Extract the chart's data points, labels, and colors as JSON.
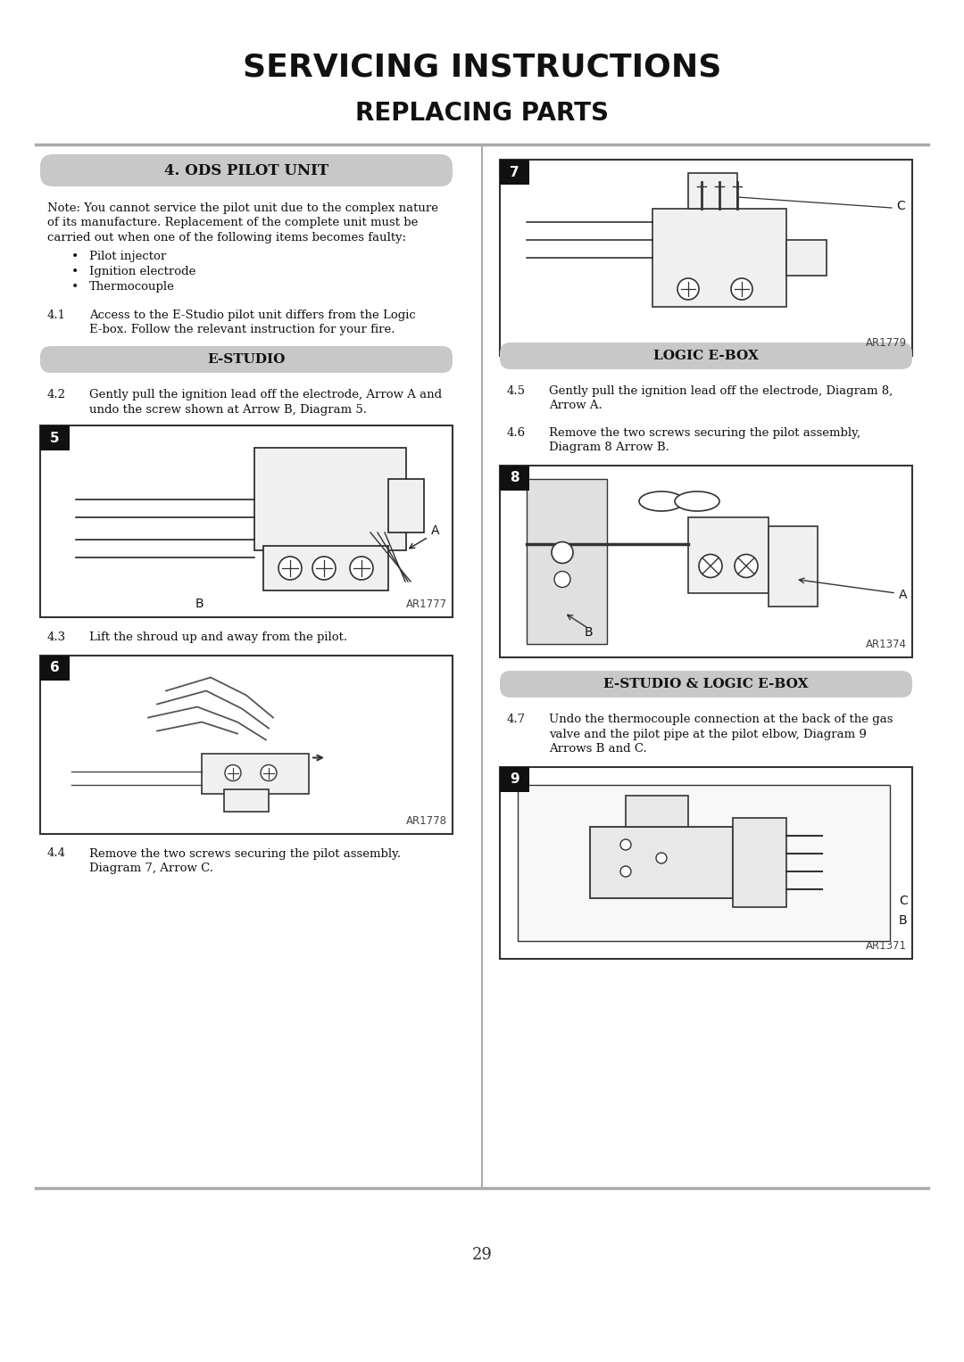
{
  "title_line1": "SERVICING INSTRUCTIONS",
  "title_line2": "REPLACING PARTS",
  "page_number": "29",
  "bg_color": "#ffffff",
  "header_bg": "#c8c8c8",
  "section_title_1": "4. ODS PILOT UNIT",
  "section_estudio": "E-STUDIO",
  "section_logic": "LOGIC E-BOX",
  "section_both": "E-STUDIO & LOGIC E-BOX",
  "bullet_items": [
    "Pilot injector",
    "Ignition electrode",
    "Thermocouple"
  ],
  "para_4_1_num": "4.1",
  "para_4_1_text": "Access to the E-Studio pilot unit differs from the Logic\nE-box. Follow the relevant instruction for your fire.",
  "para_4_2_num": "4.2",
  "para_4_2_text": "Gently pull the ignition lead off the electrode, Arrow A and\nundo the screw shown at Arrow B, Diagram 5.",
  "para_4_3_num": "4.3",
  "para_4_3_text": "Lift the shroud up and away from the pilot.",
  "para_4_4_num": "4.4",
  "para_4_4_text": "Remove the two screws securing the pilot assembly.\nDiagram 7, Arrow C.",
  "para_4_5_num": "4.5",
  "para_4_5_text": "Gently pull the ignition lead off the electrode, Diagram 8,\nArrow A.",
  "para_4_6_num": "4.6",
  "para_4_6_text": "Remove the two screws securing the pilot assembly,\nDiagram 8 Arrow B.",
  "para_4_7_num": "4.7",
  "para_4_7_text": "Undo the thermocouple connection at the back of the gas\nvalve and the pilot pipe at the pilot elbow, Diagram 9\nArrows B and C.",
  "diag5_label": "5",
  "diag5_ref": "AR1777",
  "diag6_label": "6",
  "diag6_ref": "AR1778",
  "diag7_label": "7",
  "diag7_ref": "AR1779",
  "diag8_label": "8",
  "diag8_ref": "AR1374",
  "diag9_label": "9",
  "diag9_ref": "AR1371",
  "divider_color": "#aaaaaa",
  "text_color": "#1a1a1a",
  "note_line1": "Note: You cannot service the pilot unit due to the complex nature",
  "note_line2": "of its manufacture. Replacement of the complete unit must be",
  "note_line3": "carried out when one of the following items becomes faulty:"
}
